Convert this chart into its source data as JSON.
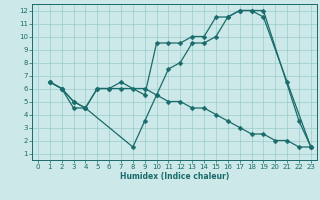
{
  "xlabel": "Humidex (Indice chaleur)",
  "bg_color": "#cce8e8",
  "grid_color": "#99cccc",
  "line_color": "#1a6b6b",
  "xlim": [
    -0.5,
    23.5
  ],
  "ylim": [
    0.5,
    12.5
  ],
  "xticks": [
    0,
    1,
    2,
    3,
    4,
    5,
    6,
    7,
    8,
    9,
    10,
    11,
    12,
    13,
    14,
    15,
    16,
    17,
    18,
    19,
    20,
    21,
    22,
    23
  ],
  "yticks": [
    1,
    2,
    3,
    4,
    5,
    6,
    7,
    8,
    9,
    10,
    11,
    12
  ],
  "line1_x": [
    1,
    2,
    3,
    4,
    8,
    9,
    10,
    11,
    12,
    13,
    14,
    15,
    16,
    17,
    18,
    19,
    21,
    23
  ],
  "line1_y": [
    6.5,
    6.0,
    5.0,
    4.5,
    1.5,
    3.5,
    5.5,
    7.5,
    8.0,
    9.5,
    9.5,
    10.0,
    11.5,
    12.0,
    12.0,
    11.5,
    6.5,
    1.5
  ],
  "line2_x": [
    1,
    2,
    3,
    4,
    5,
    6,
    7,
    9,
    10,
    11,
    12,
    13,
    14,
    15,
    16,
    17,
    18,
    19,
    22,
    23
  ],
  "line2_y": [
    6.5,
    6.0,
    5.0,
    4.5,
    6.0,
    6.0,
    6.5,
    5.5,
    9.5,
    9.5,
    9.5,
    10.0,
    10.0,
    11.5,
    11.5,
    12.0,
    12.0,
    12.0,
    3.5,
    1.5
  ],
  "line3_x": [
    1,
    2,
    3,
    4,
    5,
    6,
    7,
    8,
    9,
    10,
    11,
    12,
    13,
    14,
    15,
    16,
    17,
    18,
    19,
    20,
    21,
    22,
    23
  ],
  "line3_y": [
    6.5,
    6.0,
    4.5,
    4.5,
    6.0,
    6.0,
    6.0,
    6.0,
    6.0,
    5.5,
    5.0,
    5.0,
    4.5,
    4.5,
    4.0,
    3.5,
    3.0,
    2.5,
    2.5,
    2.0,
    2.0,
    1.5,
    1.5
  ]
}
